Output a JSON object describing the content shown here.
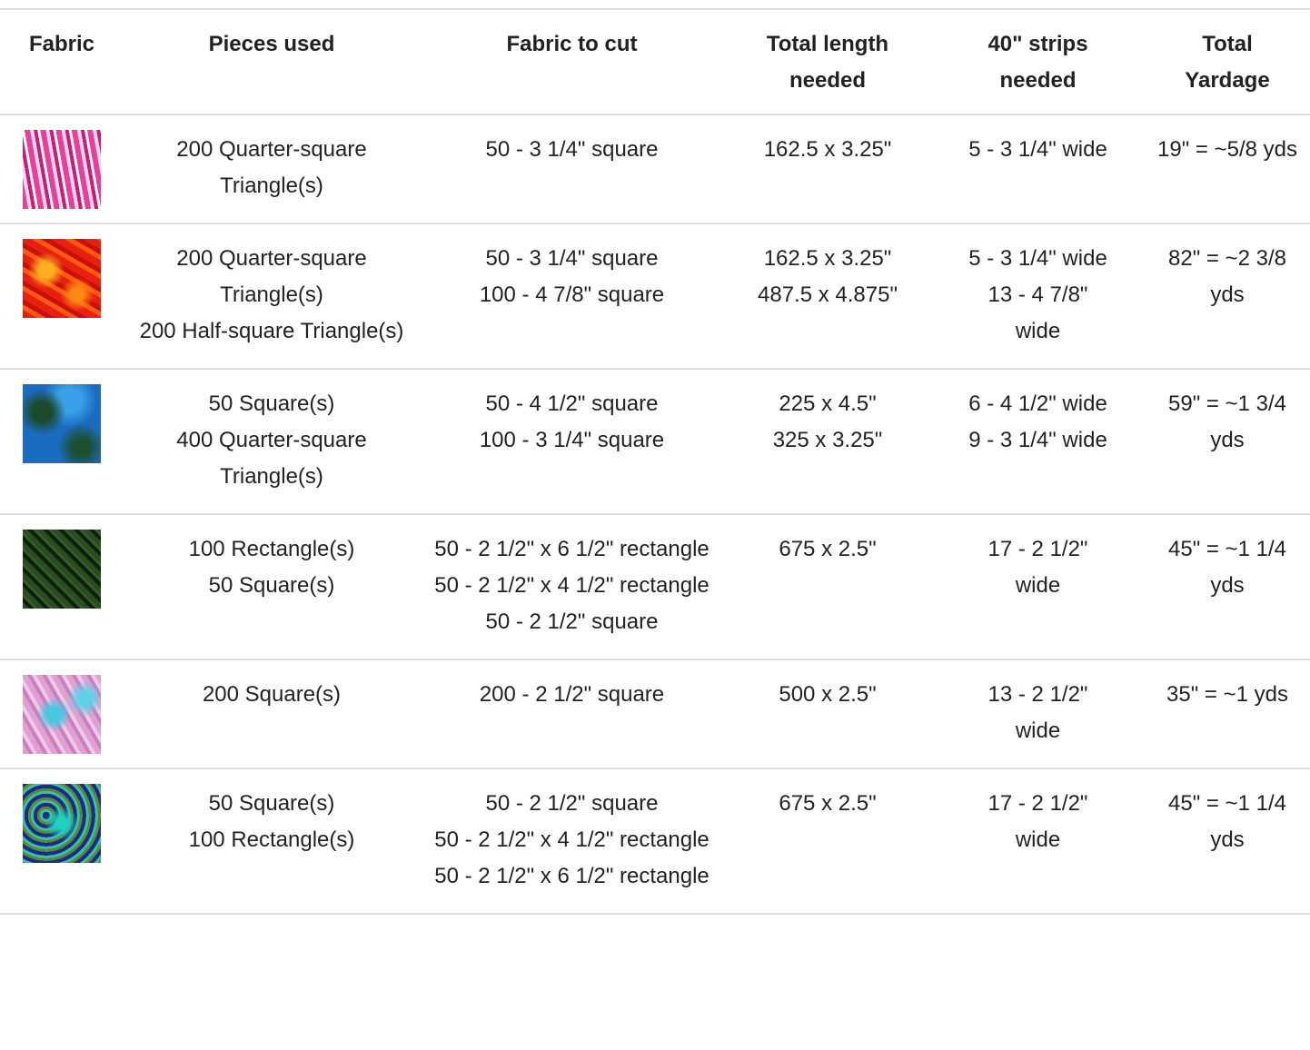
{
  "table": {
    "headers": [
      "Fabric",
      "Pieces used",
      "Fabric to cut",
      "Total length needed",
      "40\" strips needed",
      "Total Yardage"
    ],
    "rows": [
      {
        "pieces": [
          "200 Quarter-square Triangle(s)"
        ],
        "cut": [
          "50 - 3 1/4\" square"
        ],
        "length": [
          "162.5 x 3.25\""
        ],
        "strips": [
          "5 - 3 1/4\" wide"
        ],
        "yardage": "19\" = ~5/8 yds"
      },
      {
        "pieces": [
          "200 Quarter-square Triangle(s)",
          "200 Half-square Triangle(s)"
        ],
        "cut": [
          "50 - 3 1/4\" square",
          "100 - 4 7/8\" square"
        ],
        "length": [
          "162.5 x 3.25\"",
          "487.5 x 4.875\""
        ],
        "strips": [
          "5 - 3 1/4\" wide",
          "13 - 4 7/8\" wide"
        ],
        "yardage": "82\" = ~2 3/8 yds"
      },
      {
        "pieces": [
          "50 Square(s)",
          "400 Quarter-square Triangle(s)"
        ],
        "cut": [
          "50 - 4 1/2\" square",
          "100 - 3 1/4\" square"
        ],
        "length": [
          "225 x 4.5\"",
          "325 x 3.25\""
        ],
        "strips": [
          "6 - 4 1/2\" wide",
          "9 - 3 1/4\" wide"
        ],
        "yardage": "59\" = ~1 3/4 yds"
      },
      {
        "pieces": [
          "100 Rectangle(s)",
          "50 Square(s)"
        ],
        "cut": [
          "50 - 2 1/2\" x 6 1/2\" rectangle",
          "50 - 2 1/2\" x 4 1/2\" rectangle",
          "50 - 2 1/2\" square"
        ],
        "length": [
          "675 x 2.5\""
        ],
        "strips": [
          "17 - 2 1/2\" wide"
        ],
        "yardage": "45\" = ~1 1/4 yds"
      },
      {
        "pieces": [
          "200 Square(s)"
        ],
        "cut": [
          "200 - 2 1/2\" square"
        ],
        "length": [
          "500 x 2.5\""
        ],
        "strips": [
          "13 - 2 1/2\" wide"
        ],
        "yardage": "35\" = ~1 yds"
      },
      {
        "pieces": [
          "50 Square(s)",
          "100 Rectangle(s)"
        ],
        "cut": [
          "50 - 2 1/2\" square",
          "50 - 2 1/2\" x 4 1/2\" rectangle",
          "50 - 2 1/2\" x 6 1/2\" rectangle"
        ],
        "length": [
          "675 x 2.5\""
        ],
        "strips": [
          "17 - 2 1/2\" wide"
        ],
        "yardage": "45\" = ~1 1/4 yds"
      }
    ]
  }
}
